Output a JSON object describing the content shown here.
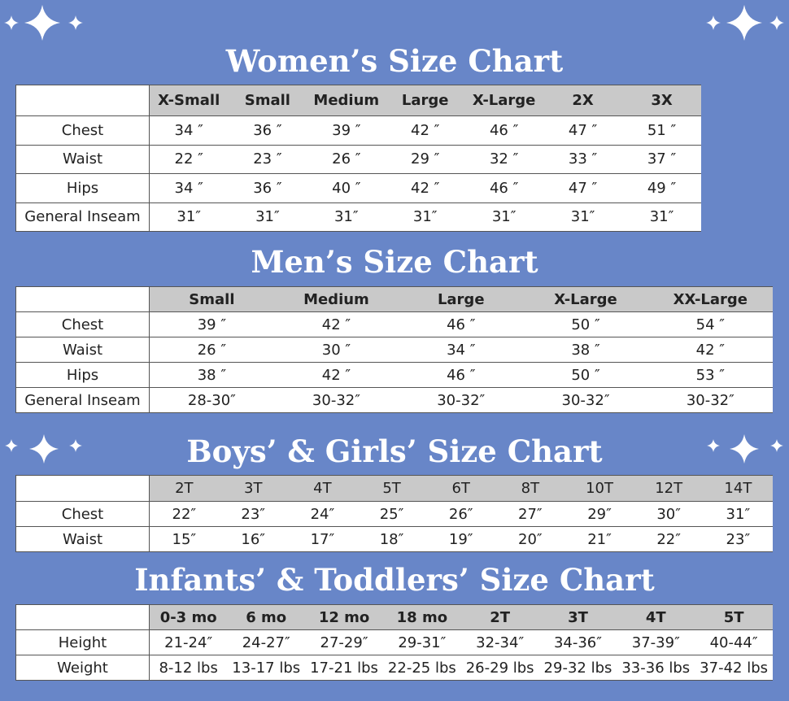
{
  "sections": [
    {
      "title": "Women’s Size Chart",
      "columns": [
        "X-Small",
        "Small",
        "Medium",
        "Large",
        "X-Large",
        "2X",
        "3X"
      ],
      "rows": [
        {
          "label": "Chest",
          "cells": [
            "34 ″",
            "36 ″",
            "39 ″",
            "42 ″",
            "46 ″",
            "47 ″",
            "51 ″"
          ]
        },
        {
          "label": "Waist",
          "cells": [
            "22 ″",
            "23 ″",
            "26 ″",
            "29 ″",
            "32 ″",
            "33 ″",
            "37 ″"
          ]
        },
        {
          "label": "Hips",
          "cells": [
            "34 ″",
            "36 ″",
            "40 ″",
            "42 ″",
            "46 ″",
            "47 ″",
            "49 ″"
          ]
        },
        {
          "label": "General Inseam",
          "cells": [
            "31″",
            "31″",
            "31″",
            "31″",
            "31″",
            "31″",
            "31″"
          ]
        }
      ]
    },
    {
      "title": "Men’s Size Chart",
      "columns": [
        "Small",
        "Medium",
        "Large",
        "X-Large",
        "XX-Large"
      ],
      "rows": [
        {
          "label": "Chest",
          "cells": [
            "39 ″",
            "42 ″",
            "46 ″",
            "50 ″",
            "54 ″"
          ]
        },
        {
          "label": "Waist",
          "cells": [
            "26 ″",
            "30 ″",
            "34 ″",
            "38 ″",
            "42 ″"
          ]
        },
        {
          "label": "Hips",
          "cells": [
            "38 ″",
            "42 ″",
            "46 ″",
            "50 ″",
            "53 ″"
          ]
        },
        {
          "label": "General Inseam",
          "cells": [
            "28-30″",
            "30-32″",
            "30-32″",
            "30-32″",
            "30-32″"
          ]
        }
      ]
    },
    {
      "title": "Boys’ & Girls’ Size Chart",
      "columns": [
        "2T",
        "3T",
        "4T",
        "5T",
        "6T",
        "8T",
        "10T",
        "12T",
        "14T"
      ],
      "rows": [
        {
          "label": "Chest",
          "cells": [
            "22″",
            "23″",
            "24″",
            "25″",
            "26″",
            "27″",
            "29″",
            "30″",
            "31″"
          ]
        },
        {
          "label": "Waist",
          "cells": [
            "15″",
            "16″",
            "17″",
            "18″",
            "19″",
            "20″",
            "21″",
            "22″",
            "23″"
          ]
        }
      ]
    },
    {
      "title": "Infants’ & Toddlers’ Size Chart",
      "columns": [
        "0-3 mo",
        "6 mo",
        "12 mo",
        "18 mo",
        "2T",
        "3T",
        "4T",
        "5T"
      ],
      "rows": [
        {
          "label": "Height",
          "cells": [
            "21-24″",
            "24-27″",
            "27-29″",
            "29-31″",
            "32-34″",
            "34-36″",
            "37-39″",
            "40-44″"
          ]
        },
        {
          "label": "Weight",
          "cells": [
            "8-12 lbs",
            "13-17 lbs",
            "17-21 lbs",
            "22-25 lbs",
            "26-29 lbs",
            "29-32 lbs",
            "33-36 lbs",
            "37-42 lbs"
          ]
        }
      ]
    }
  ]
}
